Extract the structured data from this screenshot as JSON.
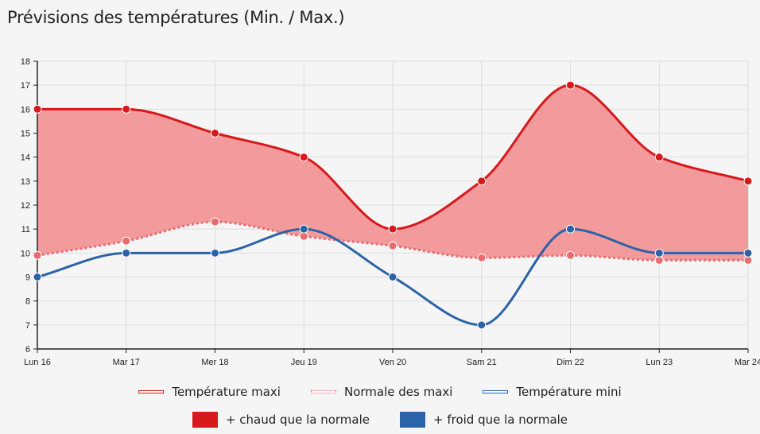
{
  "title": "Prévisions des températures (Min. / Max.)",
  "chart_data": {
    "type": "line",
    "title": "Prévisions des températures (Min. / Max.)",
    "categories": [
      "Lun 16",
      "Mar 17",
      "Mer 18",
      "Jeu 19",
      "Ven 20",
      "Sam 21",
      "Dim 22",
      "Lun 23",
      "Mar 24"
    ],
    "ylim": [
      6,
      18
    ],
    "yticks": [
      6,
      7,
      8,
      9,
      10,
      11,
      12,
      13,
      14,
      15,
      16,
      17,
      18
    ],
    "grid": true,
    "legend_position": "bottom",
    "series": [
      {
        "name": "Température maxi",
        "color": "#d7191c",
        "style": "solid",
        "values": [
          16,
          16,
          15,
          14,
          11,
          13,
          17,
          14,
          13
        ]
      },
      {
        "name": "Normale des maxi",
        "color": "#ea6a6d",
        "style": "dotted",
        "values": [
          9.9,
          10.5,
          11.3,
          10.7,
          10.3,
          9.8,
          9.9,
          9.7,
          9.7
        ]
      },
      {
        "name": "Température mini",
        "color": "#2b63a8",
        "style": "solid",
        "values": [
          9,
          10,
          10,
          11,
          9,
          7,
          11,
          10,
          10
        ]
      }
    ],
    "areas": [
      {
        "name": "+ chaud que la normale",
        "color": "#d7191c",
        "fill": "#f39b9c"
      },
      {
        "name": "+ froid que la normale",
        "color": "#2b63a8"
      }
    ]
  }
}
